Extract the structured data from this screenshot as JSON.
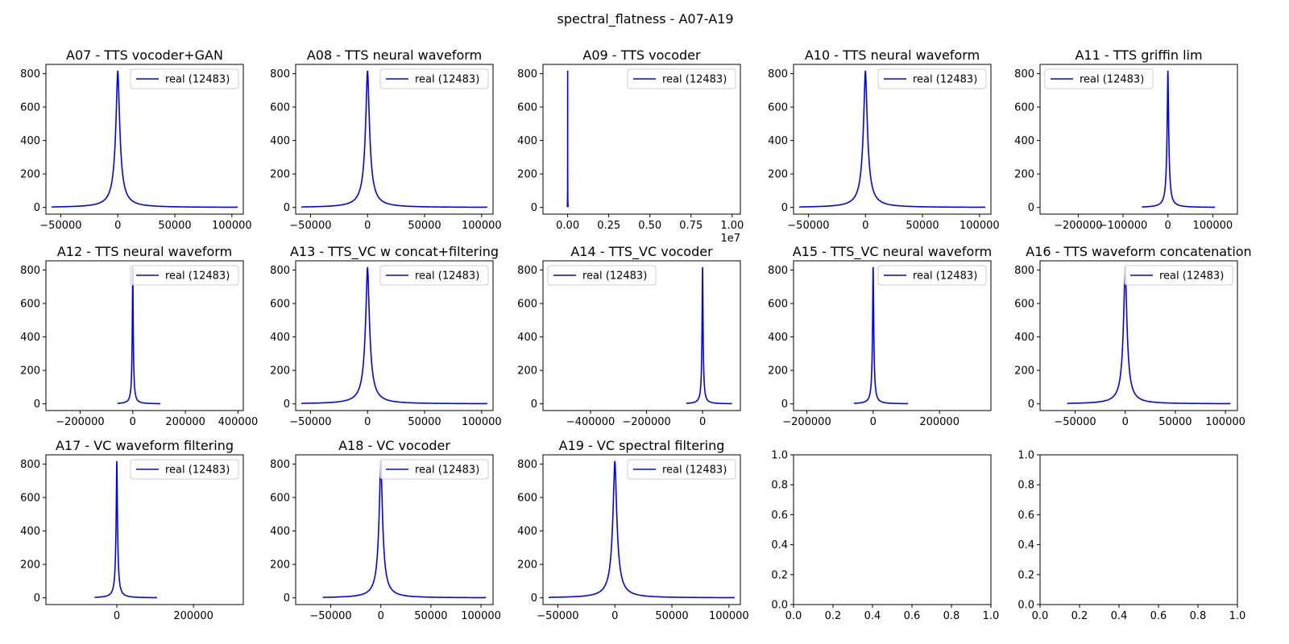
{
  "figure": {
    "title": "spectral_flatness - A07-A19"
  },
  "chart_data": [
    {
      "type": "line",
      "title": "A07 - TTS vocoder+GAN",
      "legend": "top-right",
      "series": [
        {
          "name": "real (12483)",
          "color": "#0000ff",
          "peak_x": 0,
          "peak_y": 815,
          "x_min": -58000,
          "x_max": 105000
        }
      ],
      "xlim": [
        -63000,
        110000
      ],
      "ylim": [
        -40,
        855
      ],
      "xticks": [
        {
          "v": -50000,
          "label": "−50000"
        },
        {
          "v": 0,
          "label": "0"
        },
        {
          "v": 50000,
          "label": "50000"
        },
        {
          "v": 100000,
          "label": "100000"
        }
      ],
      "yticks": [
        {
          "v": 0,
          "label": "0"
        },
        {
          "v": 200,
          "label": "200"
        },
        {
          "v": 400,
          "label": "400"
        },
        {
          "v": 600,
          "label": "600"
        },
        {
          "v": 800,
          "label": "800"
        }
      ]
    },
    {
      "type": "line",
      "title": "A08 - TTS neural waveform",
      "legend": "top-right",
      "series": [
        {
          "name": "real (12483)",
          "color": "#0000ff",
          "peak_x": 0,
          "peak_y": 815,
          "x_min": -58000,
          "x_max": 105000
        }
      ],
      "xlim": [
        -63000,
        110000
      ],
      "ylim": [
        -40,
        855
      ],
      "xticks": [
        {
          "v": -50000,
          "label": "−50000"
        },
        {
          "v": 0,
          "label": "0"
        },
        {
          "v": 50000,
          "label": "50000"
        },
        {
          "v": 100000,
          "label": "100000"
        }
      ],
      "yticks": [
        {
          "v": 0,
          "label": "0"
        },
        {
          "v": 200,
          "label": "200"
        },
        {
          "v": 400,
          "label": "400"
        },
        {
          "v": 600,
          "label": "600"
        },
        {
          "v": 800,
          "label": "800"
        }
      ]
    },
    {
      "type": "line",
      "title": "A09 - TTS vocoder",
      "legend": "top-right",
      "series": [
        {
          "name": "real (12483)",
          "color": "#0000ff",
          "peak_x": 0,
          "peak_y": 815,
          "x_min": -20000,
          "x_max": 30000
        }
      ],
      "xlim": [
        -0.15,
        1.05
      ],
      "x_scale_multiplier": "1e7",
      "ylim": [
        -40,
        855
      ],
      "xticks": [
        {
          "v": 0,
          "label": "0.00"
        },
        {
          "v": 0.25,
          "label": "0.25"
        },
        {
          "v": 0.5,
          "label": "0.50"
        },
        {
          "v": 0.75,
          "label": "0.75"
        },
        {
          "v": 1.0,
          "label": "1.00"
        }
      ],
      "yticks": [
        {
          "v": 0,
          "label": "0"
        },
        {
          "v": 200,
          "label": "200"
        },
        {
          "v": 400,
          "label": "400"
        },
        {
          "v": 600,
          "label": "600"
        },
        {
          "v": 800,
          "label": "800"
        }
      ]
    },
    {
      "type": "line",
      "title": "A10 - TTS neural waveform",
      "legend": "top-right",
      "series": [
        {
          "name": "real (12483)",
          "color": "#0000ff",
          "peak_x": 0,
          "peak_y": 815,
          "x_min": -58000,
          "x_max": 105000
        }
      ],
      "xlim": [
        -63000,
        110000
      ],
      "ylim": [
        -40,
        855
      ],
      "xticks": [
        {
          "v": -50000,
          "label": "−50000"
        },
        {
          "v": 0,
          "label": "0"
        },
        {
          "v": 50000,
          "label": "50000"
        },
        {
          "v": 100000,
          "label": "100000"
        }
      ],
      "yticks": [
        {
          "v": 0,
          "label": "0"
        },
        {
          "v": 200,
          "label": "200"
        },
        {
          "v": 400,
          "label": "400"
        },
        {
          "v": 600,
          "label": "600"
        },
        {
          "v": 800,
          "label": "800"
        }
      ]
    },
    {
      "type": "line",
      "title": "A11 - TTS griffin lim",
      "legend": "top-left",
      "series": [
        {
          "name": "real (12483)",
          "color": "#0000ff",
          "peak_x": 0,
          "peak_y": 815,
          "x_min": -58000,
          "x_max": 105000
        }
      ],
      "xlim": [
        -285000,
        155000
      ],
      "ylim": [
        -40,
        855
      ],
      "xticks": [
        {
          "v": -200000,
          "label": "−200000"
        },
        {
          "v": -100000,
          "label": "−100000"
        },
        {
          "v": 0,
          "label": "0"
        },
        {
          "v": 100000,
          "label": "100000"
        }
      ],
      "yticks": [
        {
          "v": 0,
          "label": "0"
        },
        {
          "v": 200,
          "label": "200"
        },
        {
          "v": 400,
          "label": "400"
        },
        {
          "v": 600,
          "label": "600"
        },
        {
          "v": 800,
          "label": "800"
        }
      ]
    },
    {
      "type": "line",
      "title": "A12 - TTS neural waveform",
      "legend": "top-right",
      "series": [
        {
          "name": "real (12483)",
          "color": "#0000ff",
          "peak_x": 0,
          "peak_y": 815,
          "x_min": -58000,
          "x_max": 105000
        }
      ],
      "xlim": [
        -330000,
        420000
      ],
      "ylim": [
        -40,
        855
      ],
      "xticks": [
        {
          "v": -200000,
          "label": "−200000"
        },
        {
          "v": 0,
          "label": "0"
        },
        {
          "v": 200000,
          "label": "200000"
        },
        {
          "v": 400000,
          "label": "400000"
        }
      ],
      "yticks": [
        {
          "v": 0,
          "label": "0"
        },
        {
          "v": 200,
          "label": "200"
        },
        {
          "v": 400,
          "label": "400"
        },
        {
          "v": 600,
          "label": "600"
        },
        {
          "v": 800,
          "label": "800"
        }
      ]
    },
    {
      "type": "line",
      "title": "A13 - TTS_VC w concat+filtering",
      "legend": "top-right",
      "series": [
        {
          "name": "real (12483)",
          "color": "#0000ff",
          "peak_x": 0,
          "peak_y": 815,
          "x_min": -58000,
          "x_max": 105000
        }
      ],
      "xlim": [
        -63000,
        110000
      ],
      "ylim": [
        -40,
        855
      ],
      "xticks": [
        {
          "v": -50000,
          "label": "−50000"
        },
        {
          "v": 0,
          "label": "0"
        },
        {
          "v": 50000,
          "label": "50000"
        },
        {
          "v": 100000,
          "label": "100000"
        }
      ],
      "yticks": [
        {
          "v": 0,
          "label": "0"
        },
        {
          "v": 200,
          "label": "200"
        },
        {
          "v": 400,
          "label": "400"
        },
        {
          "v": 600,
          "label": "600"
        },
        {
          "v": 800,
          "label": "800"
        }
      ]
    },
    {
      "type": "line",
      "title": "A14 - TTS_VC vocoder",
      "legend": "top-left",
      "series": [
        {
          "name": "real (12483)",
          "color": "#0000ff",
          "peak_x": 0,
          "peak_y": 815,
          "x_min": -58000,
          "x_max": 105000
        }
      ],
      "xlim": [
        -570000,
        135000
      ],
      "ylim": [
        -40,
        855
      ],
      "xticks": [
        {
          "v": -400000,
          "label": "−400000"
        },
        {
          "v": -200000,
          "label": "−200000"
        },
        {
          "v": 0,
          "label": "0"
        }
      ],
      "yticks": [
        {
          "v": 0,
          "label": "0"
        },
        {
          "v": 200,
          "label": "200"
        },
        {
          "v": 400,
          "label": "400"
        },
        {
          "v": 600,
          "label": "600"
        },
        {
          "v": 800,
          "label": "800"
        }
      ]
    },
    {
      "type": "line",
      "title": "A15 - TTS_VC neural waveform",
      "legend": "top-right",
      "series": [
        {
          "name": "real (12483)",
          "color": "#0000ff",
          "peak_x": 0,
          "peak_y": 815,
          "x_min": -58000,
          "x_max": 105000
        }
      ],
      "xlim": [
        -240000,
        355000
      ],
      "ylim": [
        -40,
        855
      ],
      "xticks": [
        {
          "v": -200000,
          "label": "−200000"
        },
        {
          "v": 0,
          "label": "0"
        },
        {
          "v": 200000,
          "label": "200000"
        }
      ],
      "yticks": [
        {
          "v": 0,
          "label": "0"
        },
        {
          "v": 200,
          "label": "200"
        },
        {
          "v": 400,
          "label": "400"
        },
        {
          "v": 600,
          "label": "600"
        },
        {
          "v": 800,
          "label": "800"
        }
      ]
    },
    {
      "type": "line",
      "title": "A16 - TTS waveform concatenation",
      "legend": "top-right",
      "series": [
        {
          "name": "real (12483)",
          "color": "#0000ff",
          "peak_x": 0,
          "peak_y": 815,
          "x_min": -58000,
          "x_max": 105000
        }
      ],
      "xlim": [
        -85000,
        112000
      ],
      "ylim": [
        -40,
        855
      ],
      "xticks": [
        {
          "v": -50000,
          "label": "−50000"
        },
        {
          "v": 0,
          "label": "0"
        },
        {
          "v": 50000,
          "label": "50000"
        },
        {
          "v": 100000,
          "label": "100000"
        }
      ],
      "yticks": [
        {
          "v": 0,
          "label": "0"
        },
        {
          "v": 200,
          "label": "200"
        },
        {
          "v": 400,
          "label": "400"
        },
        {
          "v": 600,
          "label": "600"
        },
        {
          "v": 800,
          "label": "800"
        }
      ]
    },
    {
      "type": "line",
      "title": "A17 - VC waveform filtering",
      "legend": "top-right",
      "series": [
        {
          "name": "real (12483)",
          "color": "#0000ff",
          "peak_x": 0,
          "peak_y": 815,
          "x_min": -58000,
          "x_max": 105000
        }
      ],
      "xlim": [
        -185000,
        330000
      ],
      "ylim": [
        -40,
        855
      ],
      "xticks": [
        {
          "v": 0,
          "label": "0"
        },
        {
          "v": 200000,
          "label": "200000"
        }
      ],
      "yticks": [
        {
          "v": 0,
          "label": "0"
        },
        {
          "v": 200,
          "label": "200"
        },
        {
          "v": 400,
          "label": "400"
        },
        {
          "v": 600,
          "label": "600"
        },
        {
          "v": 800,
          "label": "800"
        }
      ]
    },
    {
      "type": "line",
      "title": "A18 - VC vocoder",
      "legend": "top-right",
      "series": [
        {
          "name": "real (12483)",
          "color": "#0000ff",
          "peak_x": 0,
          "peak_y": 815,
          "x_min": -58000,
          "x_max": 105000
        }
      ],
      "xlim": [
        -85000,
        112000
      ],
      "ylim": [
        -40,
        855
      ],
      "xticks": [
        {
          "v": -50000,
          "label": "−50000"
        },
        {
          "v": 0,
          "label": "0"
        },
        {
          "v": 50000,
          "label": "50000"
        },
        {
          "v": 100000,
          "label": "100000"
        }
      ],
      "yticks": [
        {
          "v": 0,
          "label": "0"
        },
        {
          "v": 200,
          "label": "200"
        },
        {
          "v": 400,
          "label": "400"
        },
        {
          "v": 600,
          "label": "600"
        },
        {
          "v": 800,
          "label": "800"
        }
      ]
    },
    {
      "type": "line",
      "title": "A19 - VC spectral filtering",
      "legend": "top-right",
      "series": [
        {
          "name": "real (12483)",
          "color": "#0000ff",
          "peak_x": 0,
          "peak_y": 815,
          "x_min": -58000,
          "x_max": 105000
        }
      ],
      "xlim": [
        -63000,
        110000
      ],
      "ylim": [
        -40,
        855
      ],
      "xticks": [
        {
          "v": -50000,
          "label": "−50000"
        },
        {
          "v": 0,
          "label": "0"
        },
        {
          "v": 50000,
          "label": "50000"
        },
        {
          "v": 100000,
          "label": "100000"
        }
      ],
      "yticks": [
        {
          "v": 0,
          "label": "0"
        },
        {
          "v": 200,
          "label": "200"
        },
        {
          "v": 400,
          "label": "400"
        },
        {
          "v": 600,
          "label": "600"
        },
        {
          "v": 800,
          "label": "800"
        }
      ]
    },
    {
      "type": "line",
      "title": "",
      "series": [],
      "xlim": [
        0,
        1
      ],
      "ylim": [
        0,
        1
      ],
      "xticks": [
        {
          "v": 0,
          "label": "0.0"
        },
        {
          "v": 0.2,
          "label": "0.2"
        },
        {
          "v": 0.4,
          "label": "0.4"
        },
        {
          "v": 0.6,
          "label": "0.6"
        },
        {
          "v": 0.8,
          "label": "0.8"
        },
        {
          "v": 1.0,
          "label": "1.0"
        }
      ],
      "yticks": [
        {
          "v": 0,
          "label": "0.0"
        },
        {
          "v": 0.2,
          "label": "0.2"
        },
        {
          "v": 0.4,
          "label": "0.4"
        },
        {
          "v": 0.6,
          "label": "0.6"
        },
        {
          "v": 0.8,
          "label": "0.8"
        },
        {
          "v": 1.0,
          "label": "1.0"
        }
      ]
    },
    {
      "type": "line",
      "title": "",
      "series": [],
      "xlim": [
        0,
        1
      ],
      "ylim": [
        0,
        1
      ],
      "xticks": [
        {
          "v": 0,
          "label": "0.0"
        },
        {
          "v": 0.2,
          "label": "0.2"
        },
        {
          "v": 0.4,
          "label": "0.4"
        },
        {
          "v": 0.6,
          "label": "0.6"
        },
        {
          "v": 0.8,
          "label": "0.8"
        },
        {
          "v": 1.0,
          "label": "1.0"
        }
      ],
      "yticks": [
        {
          "v": 0,
          "label": "0.0"
        },
        {
          "v": 0.2,
          "label": "0.2"
        },
        {
          "v": 0.4,
          "label": "0.4"
        },
        {
          "v": 0.6,
          "label": "0.6"
        },
        {
          "v": 0.8,
          "label": "0.8"
        },
        {
          "v": 1.0,
          "label": "1.0"
        }
      ]
    }
  ]
}
